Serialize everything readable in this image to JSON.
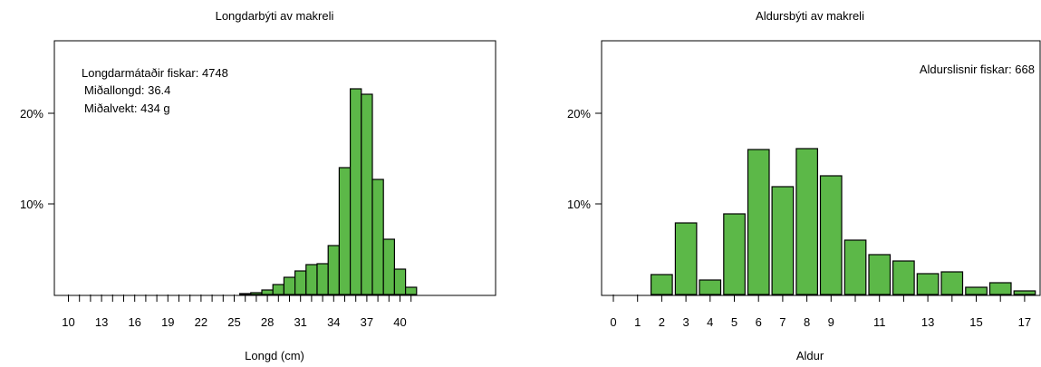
{
  "colors": {
    "bar_fill": "#5cb848",
    "bar_stroke": "#000000",
    "axis": "#000000",
    "background": "#ffffff"
  },
  "chart_data": [
    {
      "type": "bar",
      "title": "Longdarbýti av makreli",
      "xlabel": "Longd (cm)",
      "ylabel": "",
      "ylim": [
        0,
        25
      ],
      "y_ticks": [
        10,
        20
      ],
      "y_tick_labels": [
        "10%",
        "20%"
      ],
      "categories": [
        10,
        11,
        12,
        13,
        14,
        15,
        16,
        17,
        18,
        19,
        20,
        21,
        22,
        23,
        24,
        25,
        26,
        27,
        28,
        29,
        30,
        31,
        32,
        33,
        34,
        35,
        36,
        37,
        38,
        39,
        40,
        41
      ],
      "x_tick_labels": [
        "10",
        "13",
        "16",
        "19",
        "22",
        "25",
        "28",
        "31",
        "34",
        "37",
        "40"
      ],
      "values": [
        0,
        0,
        0,
        0,
        0,
        0,
        0,
        0,
        0,
        0,
        0,
        0,
        0,
        0,
        0,
        0,
        0.1,
        0.2,
        0.5,
        1.1,
        1.9,
        2.6,
        3.3,
        3.4,
        5.4,
        14.0,
        22.7,
        22.1,
        12.7,
        6.1,
        2.8,
        0.8
      ],
      "annotations": [
        "Longdarmátaðir fiskar: 4748",
        "Miðallongd: 36.4",
        "Miðalvekt: 434 g"
      ],
      "grid": false,
      "legend": "none"
    },
    {
      "type": "bar",
      "title": "Aldursbýti av makreli",
      "xlabel": "Aldur",
      "ylabel": "",
      "ylim": [
        0,
        25
      ],
      "y_ticks": [
        10,
        20
      ],
      "y_tick_labels": [
        "10%",
        "20%"
      ],
      "categories": [
        0,
        1,
        2,
        3,
        4,
        5,
        6,
        7,
        8,
        9,
        10,
        11,
        12,
        13,
        14,
        15,
        16,
        17
      ],
      "x_tick_labels": [
        "0",
        "1",
        "2",
        "3",
        "4",
        "5",
        "6",
        "7",
        "8",
        "9",
        "11",
        "13",
        "15",
        "17"
      ],
      "values": [
        0,
        0,
        2.2,
        7.9,
        1.6,
        8.9,
        16.0,
        11.9,
        16.1,
        13.1,
        6.0,
        4.4,
        3.7,
        2.3,
        2.5,
        0.8,
        1.3,
        0.4
      ],
      "annotations": [
        "Aldurslisnir fiskar: 668"
      ],
      "grid": false,
      "legend": "none"
    }
  ]
}
